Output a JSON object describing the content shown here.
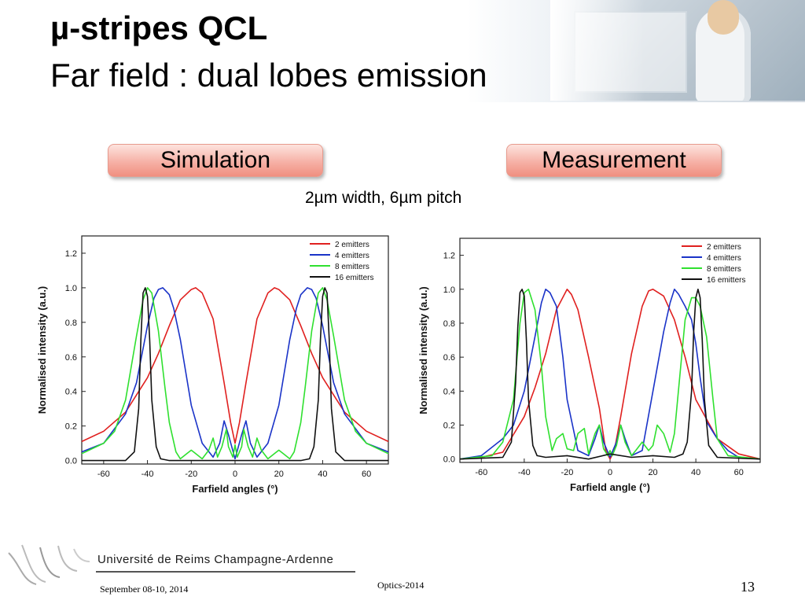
{
  "slide": {
    "title_line1": "µ-stripes QCL",
    "title_line2": "Far field : dual lobes emission",
    "simulation_label": "Simulation",
    "measurement_label": "Measurement",
    "subtitle": "2µm width, 6µm pitch",
    "university": "Université de Reims Champagne-Ardenne",
    "footer_date": "September 08-10, 2014",
    "footer_conference": "Optics-2014",
    "page_number": "13"
  },
  "colors": {
    "2 emitters": "#e0201f",
    "4 emitters": "#1a33c8",
    "8 emitters": "#2fe02f",
    "16 emitters": "#111111",
    "pill_border": "#e79b8e"
  },
  "chart_data": [
    {
      "type": "line",
      "panel": "Simulation",
      "xlabel": "Farfield angles (°)",
      "ylabel": "Normalised intensity (a.u.)",
      "xlim": [
        -70,
        70
      ],
      "ylim": [
        -0.02,
        1.3
      ],
      "xticks": [
        -60,
        -40,
        -20,
        0,
        20,
        40,
        60
      ],
      "yticks": [
        0.0,
        0.2,
        0.4,
        0.6,
        0.8,
        1.0,
        1.2
      ],
      "xtick_labels": [
        "-60",
        "-40",
        "-20",
        "0",
        "20",
        "40",
        "60"
      ],
      "ytick_labels": [
        "0.0",
        "0.2",
        "0.4",
        "0.6",
        "0.8",
        "1.0",
        "1.2"
      ],
      "legend_position": "top-right",
      "series": [
        {
          "name": "2 emitters",
          "x": [
            -70,
            -60,
            -50,
            -40,
            -35,
            -30,
            -25,
            -20,
            -18,
            -15,
            -10,
            -5,
            -2,
            0,
            2,
            5,
            10,
            15,
            18,
            20,
            25,
            30,
            35,
            40,
            50,
            60,
            70
          ],
          "y": [
            0.11,
            0.17,
            0.28,
            0.48,
            0.62,
            0.78,
            0.93,
            0.99,
            1.0,
            0.97,
            0.82,
            0.45,
            0.22,
            0.1,
            0.22,
            0.45,
            0.82,
            0.97,
            1.0,
            0.99,
            0.93,
            0.78,
            0.62,
            0.48,
            0.28,
            0.17,
            0.11
          ]
        },
        {
          "name": "4 emitters",
          "x": [
            -70,
            -60,
            -50,
            -45,
            -40,
            -37,
            -35,
            -33,
            -30,
            -28,
            -25,
            -20,
            -15,
            -10,
            -7,
            -5,
            -3,
            0,
            3,
            5,
            7,
            10,
            15,
            20,
            25,
            28,
            30,
            33,
            35,
            37,
            40,
            45,
            50,
            60,
            70
          ],
          "y": [
            0.05,
            0.1,
            0.27,
            0.45,
            0.78,
            0.94,
            0.99,
            1.0,
            0.96,
            0.88,
            0.7,
            0.32,
            0.1,
            0.02,
            0.1,
            0.23,
            0.15,
            0.01,
            0.15,
            0.23,
            0.1,
            0.02,
            0.1,
            0.32,
            0.7,
            0.88,
            0.96,
            1.0,
            0.99,
            0.94,
            0.78,
            0.45,
            0.27,
            0.1,
            0.05
          ]
        },
        {
          "name": "8 emitters",
          "x": [
            -70,
            -60,
            -55,
            -50,
            -45,
            -42,
            -40,
            -38,
            -35,
            -32,
            -30,
            -27,
            -25,
            -22,
            -20,
            -18,
            -15,
            -12,
            -10,
            -8,
            -6,
            -4,
            -3,
            -1,
            0,
            1,
            3,
            4,
            6,
            8,
            10,
            12,
            15,
            18,
            20,
            22,
            25,
            27,
            30,
            32,
            35,
            38,
            40,
            42,
            45,
            50,
            55,
            60,
            70
          ],
          "y": [
            0.04,
            0.1,
            0.17,
            0.35,
            0.72,
            0.93,
            1.0,
            0.97,
            0.75,
            0.42,
            0.22,
            0.05,
            0.01,
            0.04,
            0.06,
            0.04,
            0.01,
            0.06,
            0.13,
            0.02,
            0.08,
            0.18,
            0.08,
            0.02,
            0.09,
            0.02,
            0.08,
            0.18,
            0.08,
            0.02,
            0.13,
            0.06,
            0.01,
            0.04,
            0.06,
            0.04,
            0.01,
            0.05,
            0.22,
            0.42,
            0.75,
            0.97,
            1.0,
            0.93,
            0.72,
            0.35,
            0.17,
            0.1,
            0.04
          ]
        },
        {
          "name": "16 emitters",
          "x": [
            -70,
            -50,
            -46,
            -44,
            -43,
            -42,
            -41,
            -40,
            -39,
            -38,
            -36,
            -34,
            -30,
            -20,
            -10,
            0,
            10,
            20,
            30,
            34,
            36,
            38,
            39,
            40,
            41,
            42,
            43,
            44,
            46,
            50,
            70
          ],
          "y": [
            0.0,
            0.0,
            0.05,
            0.3,
            0.7,
            0.97,
            1.0,
            0.95,
            0.7,
            0.35,
            0.08,
            0.01,
            0.0,
            0.0,
            0.0,
            0.0,
            0.0,
            0.0,
            0.0,
            0.01,
            0.08,
            0.35,
            0.7,
            0.95,
            1.0,
            0.97,
            0.7,
            0.3,
            0.05,
            0.0,
            0.0
          ]
        }
      ]
    },
    {
      "type": "line",
      "panel": "Measurement",
      "xlabel": "Farfield angle (°)",
      "ylabel": "Normalised intensity (a.u.)",
      "xlim": [
        -70,
        70
      ],
      "ylim": [
        -0.02,
        1.3
      ],
      "xticks": [
        -60,
        -40,
        -20,
        0,
        20,
        40,
        60
      ],
      "yticks": [
        0.0,
        0.2,
        0.4,
        0.6,
        0.8,
        1.0,
        1.2
      ],
      "xtick_labels": [
        "-60",
        "-40",
        "-20",
        "0",
        "20",
        "40",
        "60"
      ],
      "ytick_labels": [
        "0.0",
        "0.2",
        "0.4",
        "0.6",
        "0.8",
        "1.0",
        "1.2"
      ],
      "legend_position": "top-right",
      "series": [
        {
          "name": "2 emitters",
          "x": [
            -70,
            -60,
            -50,
            -40,
            -35,
            -30,
            -25,
            -20,
            -18,
            -15,
            -10,
            -5,
            -2,
            0,
            2,
            5,
            10,
            15,
            18,
            20,
            25,
            30,
            35,
            40,
            50,
            60,
            70
          ],
          "y": [
            0.0,
            0.01,
            0.04,
            0.25,
            0.42,
            0.62,
            0.88,
            1.0,
            0.97,
            0.88,
            0.6,
            0.3,
            0.05,
            0.0,
            0.05,
            0.25,
            0.62,
            0.9,
            0.99,
            1.0,
            0.96,
            0.82,
            0.6,
            0.35,
            0.12,
            0.03,
            0.0
          ]
        },
        {
          "name": "4 emitters",
          "x": [
            -70,
            -60,
            -50,
            -45,
            -40,
            -35,
            -32,
            -30,
            -28,
            -25,
            -22,
            -20,
            -15,
            -10,
            -7,
            -5,
            -3,
            0,
            3,
            5,
            7,
            10,
            15,
            20,
            25,
            28,
            30,
            32,
            35,
            38,
            40,
            42,
            45,
            50,
            55,
            60,
            70
          ],
          "y": [
            0.0,
            0.02,
            0.12,
            0.2,
            0.4,
            0.72,
            0.92,
            1.0,
            0.98,
            0.9,
            0.6,
            0.35,
            0.05,
            0.02,
            0.12,
            0.2,
            0.1,
            0.01,
            0.1,
            0.2,
            0.12,
            0.02,
            0.05,
            0.4,
            0.75,
            0.92,
            1.0,
            0.97,
            0.9,
            0.82,
            0.68,
            0.48,
            0.22,
            0.12,
            0.05,
            0.01,
            0.0
          ]
        },
        {
          "name": "8 emitters",
          "x": [
            -70,
            -55,
            -50,
            -45,
            -42,
            -40,
            -38,
            -35,
            -32,
            -30,
            -27,
            -25,
            -22,
            -20,
            -17,
            -15,
            -12,
            -10,
            -7,
            -5,
            -3,
            -1,
            0,
            1,
            3,
            5,
            7,
            10,
            12,
            15,
            18,
            20,
            22,
            25,
            28,
            30,
            33,
            35,
            38,
            40,
            42,
            45,
            48,
            50,
            55,
            70
          ],
          "y": [
            0.0,
            0.02,
            0.1,
            0.35,
            0.8,
            0.98,
            1.0,
            0.88,
            0.55,
            0.25,
            0.05,
            0.12,
            0.15,
            0.06,
            0.05,
            0.15,
            0.18,
            0.03,
            0.15,
            0.2,
            0.06,
            0.02,
            0.05,
            0.02,
            0.08,
            0.2,
            0.1,
            0.02,
            0.05,
            0.1,
            0.05,
            0.08,
            0.2,
            0.15,
            0.04,
            0.15,
            0.55,
            0.82,
            0.95,
            0.95,
            0.9,
            0.72,
            0.35,
            0.12,
            0.02,
            0.0
          ]
        },
        {
          "name": "16 emitters",
          "x": [
            -70,
            -50,
            -46,
            -44,
            -43,
            -42,
            -41,
            -40,
            -39,
            -38,
            -36,
            -34,
            -30,
            -20,
            -10,
            0,
            10,
            20,
            30,
            34,
            36,
            38,
            39,
            40,
            41,
            42,
            43,
            44,
            46,
            50,
            70
          ],
          "y": [
            0.0,
            0.01,
            0.1,
            0.45,
            0.78,
            0.98,
            1.0,
            0.96,
            0.7,
            0.35,
            0.08,
            0.02,
            0.01,
            0.02,
            0.0,
            0.03,
            0.01,
            0.02,
            0.01,
            0.03,
            0.1,
            0.4,
            0.75,
            0.95,
            1.0,
            0.95,
            0.7,
            0.35,
            0.08,
            0.01,
            0.0
          ]
        }
      ]
    }
  ]
}
